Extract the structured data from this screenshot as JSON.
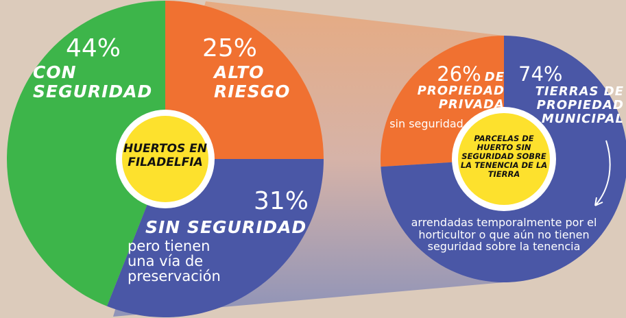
{
  "chart_data": [
    {
      "type": "pie",
      "title": "HUERTOS EN FILADELFIA",
      "categories": [
        "ALTO RIESGO",
        "SIN SEGURIDAD",
        "CON SEGURIDAD"
      ],
      "values": [
        25,
        31,
        44
      ],
      "value_labels": [
        "25%",
        "31%",
        "44%"
      ],
      "colors": [
        "#f07131",
        "#4a57a6",
        "#3db54a"
      ],
      "notes": [
        null,
        "pero tienen una vía de preservación",
        null
      ],
      "start_angle": 0,
      "direction": "clockwise"
    },
    {
      "type": "pie",
      "title": "PARCELAS DE HUERTO SIN SEGURIDAD SOBRE LA TENENCIA DE LA TIERRA",
      "categories": [
        "DE PROPIEDAD PRIVADA",
        "TIERRAS DE PROPIEDAD MUNICIPAL"
      ],
      "values": [
        26,
        74
      ],
      "value_labels": [
        "26%",
        "74%"
      ],
      "colors": [
        "#f07131",
        "#4a57a6"
      ],
      "notes": [
        "sin seguridad",
        "arrendadas temporalmente por el horticultor o que aún no tienen seguridad sobre la tenencia"
      ],
      "start_angle": 0,
      "direction": "counterclockwise"
    }
  ]
}
